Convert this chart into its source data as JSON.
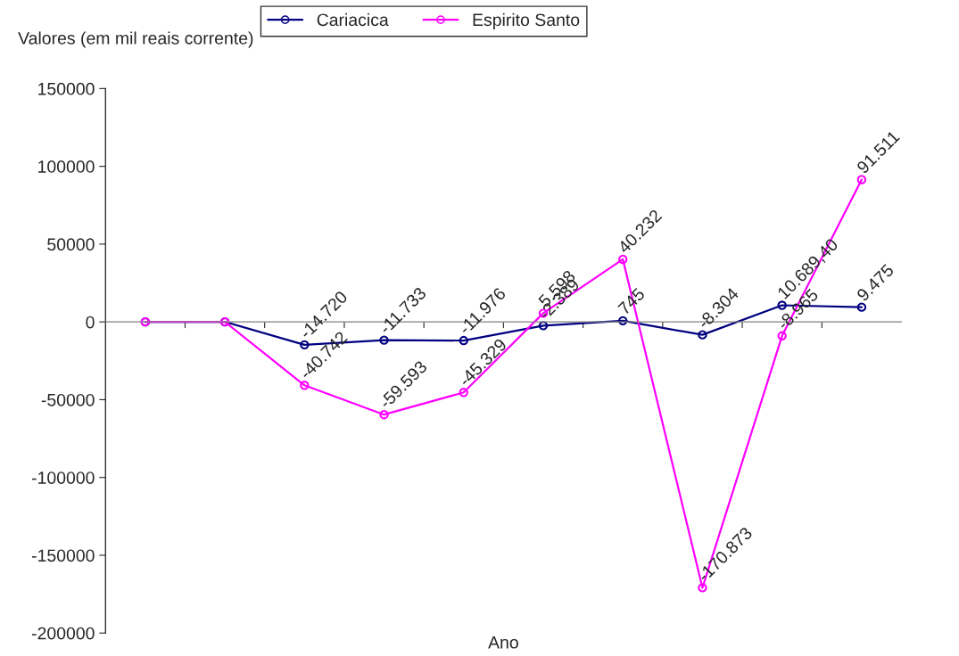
{
  "chart_data": {
    "type": "line",
    "ylabel": "Valores (em mil reais corrente)",
    "xlabel": "Ano",
    "categories": [
      null,
      null,
      null,
      null,
      null,
      null,
      null,
      null,
      null,
      null
    ],
    "series": [
      {
        "name": "Cariacica",
        "color": "#000080",
        "values": [
          0,
          0,
          -14720,
          -11733,
          -11976,
          -2389,
          745,
          -8304,
          10689.4,
          9475
        ],
        "value_labels": [
          null,
          null,
          "-14.720",
          "-11.733",
          "-11.976",
          "-2.389",
          "745",
          "-8.304",
          "10.689,40",
          "9.475"
        ]
      },
      {
        "name": "Espirito Santo",
        "color": "#ff00ff",
        "values": [
          0,
          0,
          -40742,
          -59593,
          -45329,
          5598,
          40232,
          -170873,
          -8965,
          91511
        ],
        "value_labels": [
          null,
          null,
          "-40.742",
          "-59.593",
          "-45.329",
          "5.598",
          "40.232",
          "-170.873",
          "-8.965",
          "91.511"
        ]
      }
    ],
    "ylim": [
      -200000,
      150000
    ],
    "yticks": [
      -200000,
      -150000,
      -100000,
      -50000,
      0,
      50000,
      100000,
      150000
    ],
    "legend": "top",
    "marker": "circle",
    "line_style": "solid"
  }
}
